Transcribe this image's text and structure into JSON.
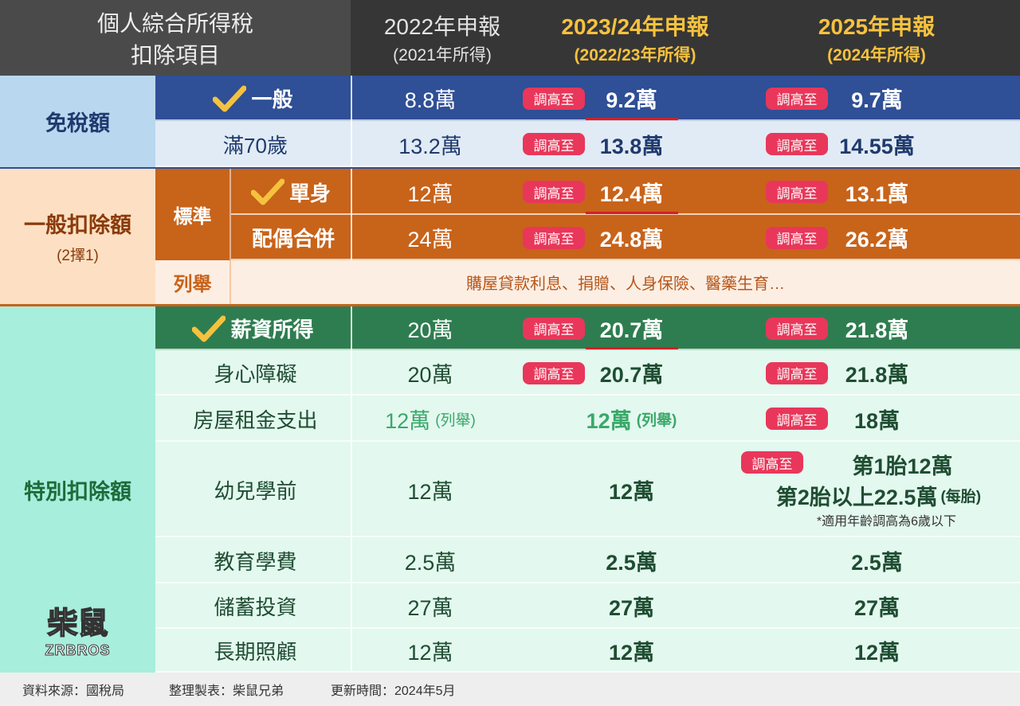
{
  "header": {
    "title": [
      "個人綜合所得稅",
      "扣除項目"
    ],
    "columns": [
      [
        "2022年申報",
        "(2021年所得)"
      ],
      [
        "2023/24年申報",
        "(2022/23年所得)"
      ],
      [
        "2025年申報",
        "(2024年所得)"
      ]
    ]
  },
  "raise_label": "調高至",
  "sections": [
    {
      "label": "免稅額",
      "rows": [
        {
          "item": "一般",
          "checked": true,
          "underline": true,
          "raised": [
            false,
            true,
            true
          ],
          "values": [
            "8.8萬",
            "9.2萬",
            "9.7萬"
          ]
        },
        {
          "item": "滿70歲",
          "raised": [
            false,
            true,
            true
          ],
          "values": [
            "13.2萬",
            "13.8萬",
            "14.55萬"
          ]
        }
      ]
    },
    {
      "label": "一般扣除額",
      "note": "(2擇1)",
      "group": "標準",
      "rows": [
        {
          "item": "單身",
          "checked": true,
          "underline": true,
          "raised": [
            false,
            true,
            true
          ],
          "values": [
            "12萬",
            "12.4萬",
            "13.1萬"
          ]
        },
        {
          "item": "配偶合併",
          "raised": [
            false,
            true,
            true
          ],
          "values": [
            "24萬",
            "24.8萬",
            "26.2萬"
          ]
        }
      ],
      "itemized": {
        "label": "列舉",
        "text": "購屋貸款利息、捐贈、人身保險、醫藥生育…"
      }
    },
    {
      "label": "特別扣除額",
      "rows": [
        {
          "item": "薪資所得",
          "checked": true,
          "underline": true,
          "raised": [
            false,
            true,
            true
          ],
          "values": [
            "20萬",
            "20.7萬",
            "21.8萬"
          ]
        },
        {
          "item": "身心障礙",
          "raised": [
            false,
            true,
            true
          ],
          "values": [
            "20萬",
            "20.7萬",
            "21.8萬"
          ]
        },
        {
          "item": "房屋租金支出",
          "raised": [
            false,
            false,
            true
          ],
          "values": [
            {
              "value": "12萬",
              "note": "(列舉)"
            },
            {
              "value": "12萬",
              "note": "(列舉)"
            },
            "18萬"
          ]
        },
        {
          "item": "幼兒學前",
          "raised": [
            false,
            false,
            true
          ],
          "values": [
            "12萬",
            "12萬",
            {
              "line1": "第1胎12萬",
              "line2": "第2胎以上22.5萬",
              "line2_note": "(每胎)",
              "footnote": "*適用年齡調高為6歲以下"
            }
          ]
        },
        {
          "item": "教育學費",
          "raised": [
            false,
            false,
            false
          ],
          "values": [
            "2.5萬",
            "2.5萬",
            "2.5萬"
          ]
        },
        {
          "item": "儲蓄投資",
          "raised": [
            false,
            false,
            false
          ],
          "values": [
            "27萬",
            "27萬",
            "27萬"
          ]
        },
        {
          "item": "長期照顧",
          "raised": [
            false,
            false,
            false
          ],
          "values": [
            "12萬",
            "12萬",
            "12萬"
          ]
        }
      ]
    }
  ],
  "logo": {
    "name": "柴鼠",
    "sub": "ZRBROS"
  },
  "footer": [
    "資料來源：國稅局",
    "整理製表：柴鼠兄弟",
    "更新時間：2024年5月"
  ]
}
